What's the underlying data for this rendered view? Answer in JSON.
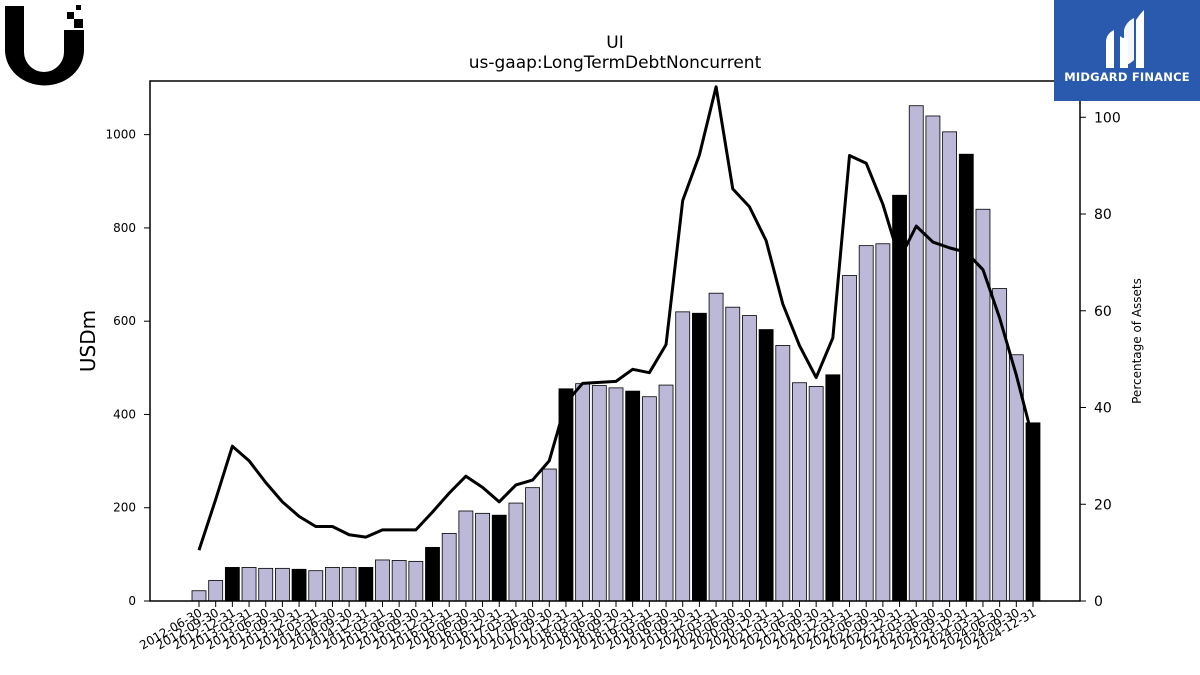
{
  "chart_data": {
    "type": "bar+line",
    "title": "UI",
    "subtitle": "us-gaap:LongTermDebtNoncurrent",
    "ylabel": "USDm",
    "y2label": "Percentage of Assets",
    "ylim": [
      0,
      1115
    ],
    "y2lim": [
      0,
      107.5
    ],
    "yticks": [
      0,
      200,
      400,
      600,
      800,
      1000
    ],
    "y2ticks": [
      0,
      20,
      40,
      60,
      80,
      100
    ],
    "colors": {
      "bar": "#bcb8d8",
      "bar_highlight": "#000000",
      "line": "#000000"
    },
    "categories": [
      "2012-06-30",
      "2012-09-30",
      "2012-12-31",
      "2013-03-31",
      "2013-06-30",
      "2013-09-30",
      "2013-12-31",
      "2014-03-31",
      "2014-06-30",
      "2014-09-30",
      "2014-12-31",
      "2015-03-31",
      "2015-06-30",
      "2015-09-30",
      "2015-12-31",
      "2016-03-31",
      "2016-06-30",
      "2016-09-30",
      "2016-12-31",
      "2017-03-31",
      "2017-06-30",
      "2017-09-30",
      "2017-12-31",
      "2018-03-31",
      "2018-06-30",
      "2018-09-30",
      "2018-12-31",
      "2019-03-31",
      "2019-06-30",
      "2019-09-30",
      "2019-12-31",
      "2020-03-31",
      "2020-06-30",
      "2020-09-30",
      "2020-12-31",
      "2021-03-31",
      "2021-06-30",
      "2021-09-30",
      "2021-12-31",
      "2022-03-31",
      "2022-06-30",
      "2022-09-30",
      "2022-12-31",
      "2023-03-31",
      "2023-06-30",
      "2023-09-30",
      "2023-12-31",
      "2024-03-31",
      "2024-06-30",
      "2024-09-30",
      "2024-12-31"
    ],
    "series": [
      {
        "kind": "bar",
        "axis": "left",
        "values": [
          22,
          44,
          72,
          72,
          70,
          70,
          68,
          65,
          72,
          72,
          72,
          88,
          87,
          85,
          115,
          145,
          193,
          188,
          184,
          210,
          243,
          283,
          455,
          466,
          462,
          457,
          450,
          438,
          463,
          620,
          617,
          660,
          630,
          612,
          582,
          548,
          468,
          460,
          485,
          698,
          762,
          766,
          870,
          1062,
          1040,
          1006,
          958,
          840,
          670,
          528,
          382
        ],
        "highlight": [
          false,
          false,
          true,
          false,
          false,
          false,
          true,
          false,
          false,
          false,
          true,
          false,
          false,
          false,
          true,
          false,
          false,
          false,
          true,
          false,
          false,
          false,
          true,
          false,
          false,
          false,
          true,
          false,
          false,
          false,
          true,
          false,
          false,
          false,
          true,
          false,
          false,
          false,
          true,
          false,
          false,
          false,
          true,
          false,
          false,
          false,
          true,
          false,
          false,
          false,
          true
        ]
      },
      {
        "kind": "line",
        "axis": "right",
        "values": [
          10.5,
          21.0,
          32.0,
          29.0,
          24.5,
          20.5,
          17.5,
          15.4,
          15.4,
          13.7,
          13.2,
          14.7,
          14.7,
          14.7,
          18.4,
          22.3,
          25.8,
          23.5,
          20.5,
          24.0,
          25.0,
          29.0,
          41.0,
          45.0,
          45.2,
          45.4,
          47.9,
          47.2,
          53.0,
          82.8,
          92.2,
          106.3,
          85.2,
          81.5,
          74.5,
          61.4,
          52.8,
          46.2,
          54.4,
          92.1,
          90.5,
          82.0,
          70.7,
          77.5,
          74.2,
          73.0,
          72.1,
          68.5,
          58.5,
          46.7,
          33.4
        ]
      }
    ]
  },
  "logos": {
    "left": "UI",
    "right_brand": "MIDGARD FINANCE",
    "right_icon": "midgard-monogram-icon"
  }
}
